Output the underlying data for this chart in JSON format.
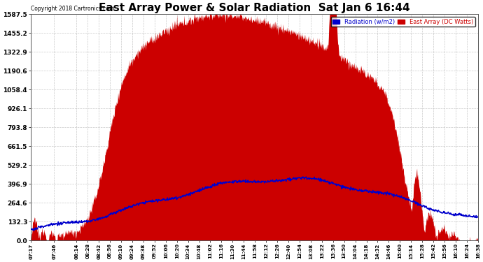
{
  "title": "East Array Power & Solar Radiation  Sat Jan 6 16:44",
  "copyright": "Copyright 2018 Cartronics.com",
  "legend_radiation": "Radiation (w/m2)",
  "legend_east_array": "East Array (DC Watts)",
  "ylabel_values": [
    0.0,
    132.3,
    264.6,
    396.9,
    529.2,
    661.5,
    793.8,
    926.1,
    1058.4,
    1190.6,
    1322.9,
    1455.2,
    1587.5
  ],
  "ymax": 1587.5,
  "ymin": 0.0,
  "background_color": "#ffffff",
  "plot_bg_color": "#ffffff",
  "fill_color": "#cc0000",
  "line_color": "#0000cc",
  "grid_color": "#bbbbbb",
  "title_fontsize": 11,
  "tick_labels": [
    "07:17",
    "07:46",
    "08:14",
    "08:28",
    "08:42",
    "08:56",
    "09:10",
    "09:24",
    "09:38",
    "09:52",
    "10:06",
    "10:20",
    "10:34",
    "10:48",
    "11:02",
    "11:16",
    "11:30",
    "11:44",
    "11:58",
    "12:12",
    "12:26",
    "12:40",
    "12:54",
    "13:08",
    "13:22",
    "13:36",
    "13:50",
    "14:04",
    "14:18",
    "14:32",
    "14:46",
    "15:00",
    "15:14",
    "15:28",
    "15:42",
    "15:56",
    "16:10",
    "16:24",
    "16:38"
  ]
}
